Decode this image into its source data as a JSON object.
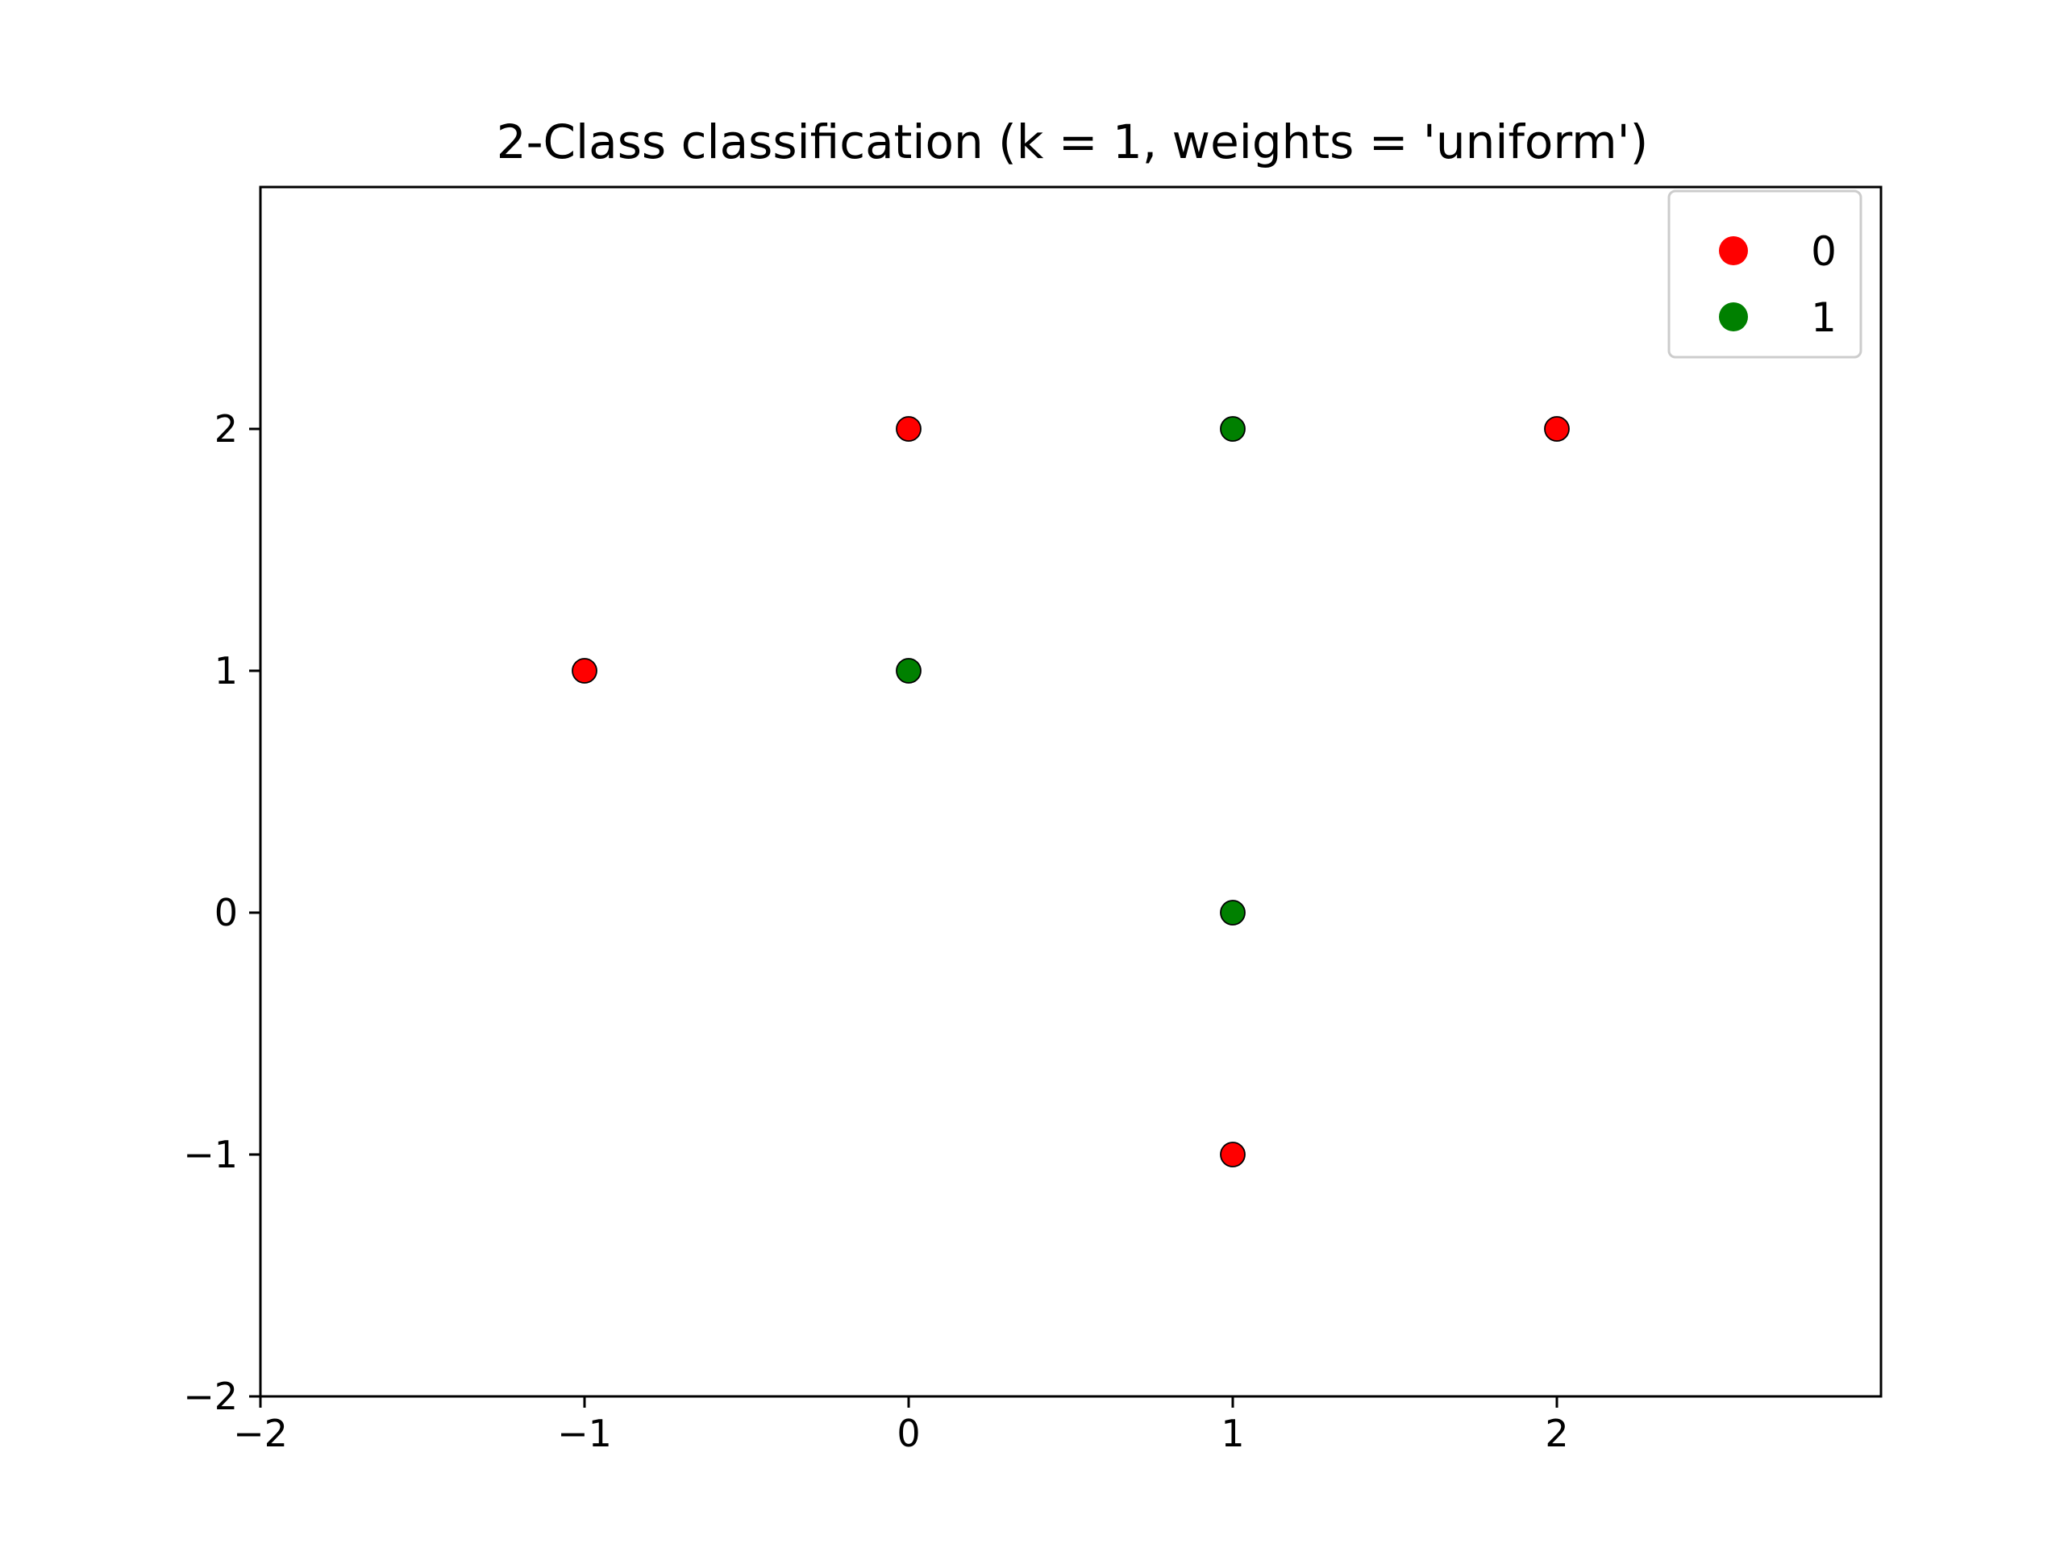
{
  "chart_data": {
    "type": "scatter",
    "title": "2-Class classification (k = 1, weights = 'uniform')",
    "xlabel": "",
    "ylabel": "",
    "xlim": [
      -2,
      3
    ],
    "ylim": [
      -2,
      3
    ],
    "x_ticks": [
      -2,
      -1,
      0,
      1,
      2
    ],
    "y_ticks": [
      -2,
      -1,
      0,
      1,
      2
    ],
    "x_tick_labels": [
      "−2",
      "−1",
      "0",
      "1",
      "2"
    ],
    "y_tick_labels": [
      "−2",
      "−1",
      "0",
      "1",
      "2"
    ],
    "grid": false,
    "legend_position": "top-right",
    "series": [
      {
        "name": "0",
        "color": "#ff0000",
        "points": [
          [
            0,
            2
          ],
          [
            2,
            2
          ],
          [
            -1,
            1
          ],
          [
            1,
            -1
          ]
        ]
      },
      {
        "name": "1",
        "color": "#008000",
        "points": [
          [
            1,
            2
          ],
          [
            0,
            1
          ],
          [
            1,
            0
          ]
        ]
      }
    ]
  }
}
